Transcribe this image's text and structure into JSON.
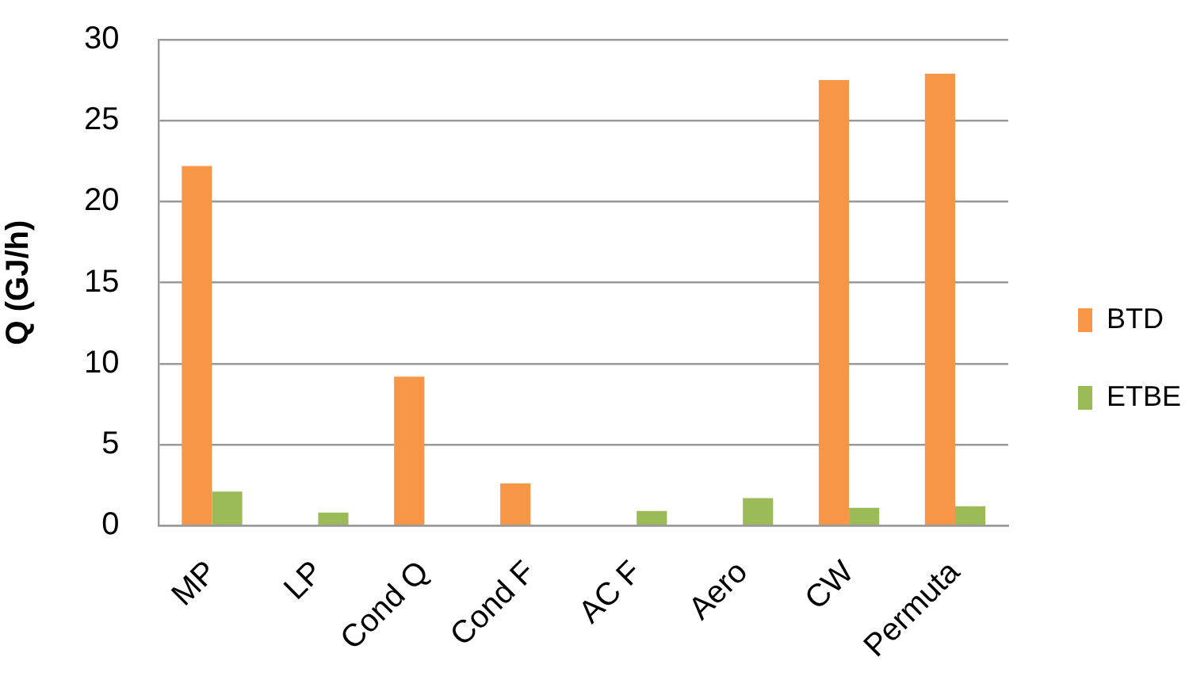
{
  "chart_data": {
    "type": "bar",
    "ylabel": "Q (GJ/h)",
    "categories": [
      "MP",
      "LP",
      "Cond Q",
      "Cond F",
      "AC F",
      "Aero",
      "CW",
      "Permuta"
    ],
    "series": [
      {
        "name": "BTD",
        "color": "#f79646",
        "values": [
          22.2,
          null,
          9.2,
          2.6,
          null,
          null,
          27.5,
          27.9
        ]
      },
      {
        "name": "ETBE",
        "color": "#9bbb59",
        "values": [
          2.1,
          0.8,
          null,
          null,
          0.9,
          1.7,
          1.1,
          1.2
        ]
      }
    ],
    "ylim": [
      0,
      30
    ],
    "yticks": [
      0,
      5,
      10,
      15,
      20,
      25,
      30
    ],
    "grid": "y",
    "legend": "right"
  }
}
